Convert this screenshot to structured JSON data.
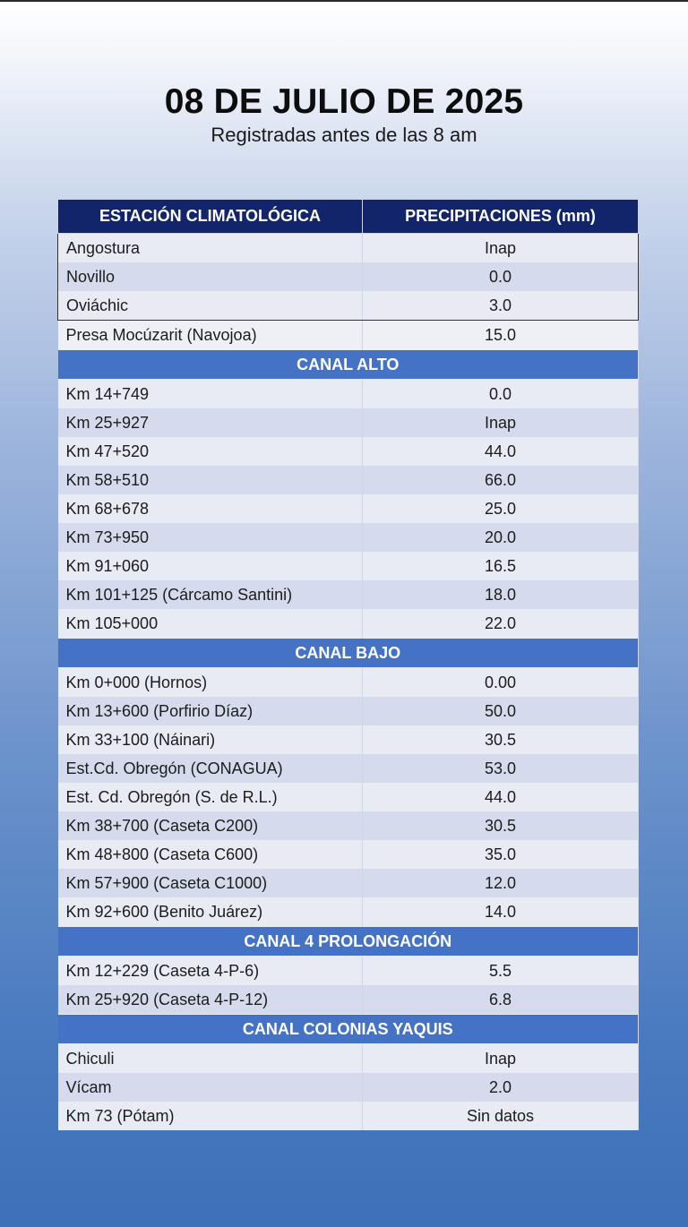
{
  "header": {
    "title": "08 DE JULIO DE 2025",
    "subtitle": "Registradas antes de las 8 am"
  },
  "table": {
    "columns": [
      "ESTACIÓN CLIMATOLÓGICA",
      "PRECIPITACIONES (mm)"
    ],
    "top_rows": [
      {
        "name": "Angostura",
        "value": "Inap"
      },
      {
        "name": "Novillo",
        "value": "0.0"
      },
      {
        "name": "Oviáchic",
        "value": "3.0"
      },
      {
        "name": "Presa Mocúzarit (Navojoa)",
        "value": "15.0"
      }
    ],
    "sections": [
      {
        "title": "CANAL ALTO",
        "rows": [
          {
            "name": "Km 14+749",
            "value": "0.0"
          },
          {
            "name": "Km 25+927",
            "value": "Inap"
          },
          {
            "name": "Km 47+520",
            "value": "44.0"
          },
          {
            "name": "Km 58+510",
            "value": "66.0"
          },
          {
            "name": "Km 68+678",
            "value": "25.0"
          },
          {
            "name": "Km 73+950",
            "value": "20.0"
          },
          {
            "name": "Km 91+060",
            "value": "16.5"
          },
          {
            "name": "Km 101+125 (Cárcamo Santini)",
            "value": "18.0"
          },
          {
            "name": "Km 105+000",
            "value": "22.0"
          }
        ]
      },
      {
        "title": "CANAL BAJO",
        "rows": [
          {
            "name": "Km 0+000 (Hornos)",
            "value": "0.00"
          },
          {
            "name": "Km 13+600 (Porfirio Díaz)",
            "value": "50.0"
          },
          {
            "name": "Km 33+100 (Náinari)",
            "value": "30.5"
          },
          {
            "name": "Est.Cd. Obregón (CONAGUA)",
            "value": "53.0"
          },
          {
            "name": "Est. Cd. Obregón (S. de R.L.)",
            "value": "44.0"
          },
          {
            "name": "Km 38+700 (Caseta C200)",
            "value": "30.5"
          },
          {
            "name": "Km 48+800 (Caseta C600)",
            "value": "35.0"
          },
          {
            "name": "Km 57+900 (Caseta C1000)",
            "value": "12.0"
          },
          {
            "name": "Km 92+600 (Benito Juárez)",
            "value": "14.0"
          }
        ]
      },
      {
        "title": "CANAL 4 PROLONGACIÓN",
        "rows": [
          {
            "name": "Km 12+229 (Caseta 4-P-6)",
            "value": "5.5"
          },
          {
            "name": "Km 25+920 (Caseta 4-P-12)",
            "value": "6.8"
          }
        ]
      },
      {
        "title": "CANAL COLONIAS YAQUIS",
        "rows": [
          {
            "name": "Chiculi",
            "value": "Inap"
          },
          {
            "name": "Vícam",
            "value": "2.0"
          },
          {
            "name": "Km 73 (Pótam)",
            "value": "Sin datos"
          }
        ]
      }
    ]
  },
  "colors": {
    "header_bg": "#12256a",
    "section_bg": "#4472c4",
    "row_light": "#e8ebf4",
    "row_dark": "#d5dbec"
  }
}
